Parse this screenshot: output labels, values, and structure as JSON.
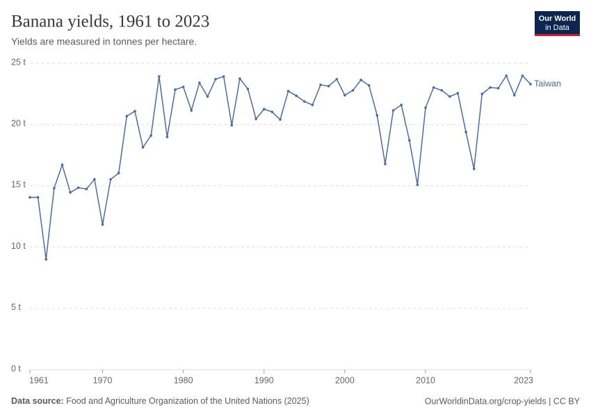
{
  "logo": {
    "line1": "Our World",
    "line2": "in Data"
  },
  "footer": {
    "source_label": "Data source:",
    "source": "Food and Agriculture Organization of the United Nations (2025)",
    "link": "OurWorldinData.org/crop-yields | CC BY"
  },
  "chart_data": {
    "type": "line",
    "title": "Banana yields, 1961 to 2023",
    "subtitle": "Yields are measured in tonnes per hectare.",
    "x": [
      1961,
      1962,
      1963,
      1964,
      1965,
      1966,
      1967,
      1968,
      1969,
      1970,
      1971,
      1972,
      1973,
      1974,
      1975,
      1976,
      1977,
      1978,
      1979,
      1980,
      1981,
      1982,
      1983,
      1984,
      1985,
      1986,
      1987,
      1988,
      1989,
      1990,
      1991,
      1992,
      1993,
      1994,
      1995,
      1996,
      1997,
      1998,
      1999,
      2000,
      2001,
      2002,
      2003,
      2004,
      2005,
      2006,
      2007,
      2008,
      2009,
      2010,
      2011,
      2012,
      2013,
      2014,
      2015,
      2016,
      2017,
      2018,
      2019,
      2020,
      2021,
      2022,
      2023
    ],
    "series": [
      {
        "name": "Taiwan",
        "color": "#4c6a9c",
        "values": [
          14.06,
          14.06,
          9.01,
          14.8,
          16.72,
          14.46,
          14.85,
          14.74,
          15.53,
          11.85,
          15.53,
          16.04,
          20.69,
          21.09,
          18.14,
          19.1,
          23.92,
          18.99,
          22.85,
          23.07,
          21.15,
          23.41,
          22.28,
          23.7,
          23.92,
          19.95,
          23.75,
          22.9,
          20.46,
          21.26,
          21.03,
          20.41,
          22.73,
          22.34,
          21.88,
          21.6,
          23.24,
          23.13,
          23.7,
          22.39,
          22.79,
          23.64,
          23.19,
          20.75,
          16.78,
          21.15,
          21.6,
          18.71,
          15.08,
          21.37,
          23.02,
          22.79,
          22.28,
          22.56,
          19.39,
          16.38,
          22.5,
          23.02,
          22.96,
          23.98,
          22.39,
          23.98,
          23.3
        ]
      }
    ],
    "xlim": [
      1961,
      2023
    ],
    "xticks": [
      1961,
      1970,
      1980,
      1990,
      2000,
      2010,
      2023
    ],
    "ylim": [
      0,
      25
    ],
    "yticks": [
      {
        "value": 0,
        "label": "0 t"
      },
      {
        "value": 5,
        "label": "5 t"
      },
      {
        "value": 10,
        "label": "10 t"
      },
      {
        "value": 15,
        "label": "15 t"
      },
      {
        "value": 20,
        "label": "20 t"
      },
      {
        "value": 25,
        "label": "25 t"
      }
    ],
    "grid": true
  }
}
